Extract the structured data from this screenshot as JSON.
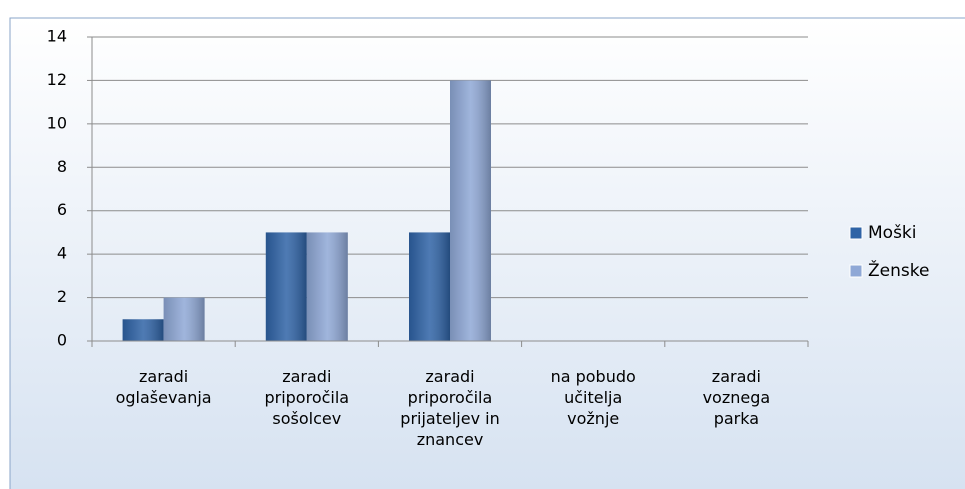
{
  "chart_data": {
    "type": "bar",
    "categories": [
      "zaradi\noglaševanja",
      "zaradi\npriporočila\nsošolcev",
      "zaradi\npriporočila\nprijateljev in\nznancev",
      "na pobudo\nučitelja\nvožnje",
      "zaradi\nvoznega\nparka"
    ],
    "series": [
      {
        "name": "Moški",
        "color": "#2f63a6",
        "values": [
          1,
          5,
          5,
          0,
          0
        ]
      },
      {
        "name": "Ženske",
        "color": "#8fa8d6",
        "values": [
          2,
          5,
          12,
          0,
          0
        ]
      }
    ],
    "ylim": [
      0,
      14
    ],
    "yticks": [
      0,
      2,
      4,
      6,
      8,
      10,
      12,
      14
    ],
    "grid": true,
    "legend": "right"
  }
}
